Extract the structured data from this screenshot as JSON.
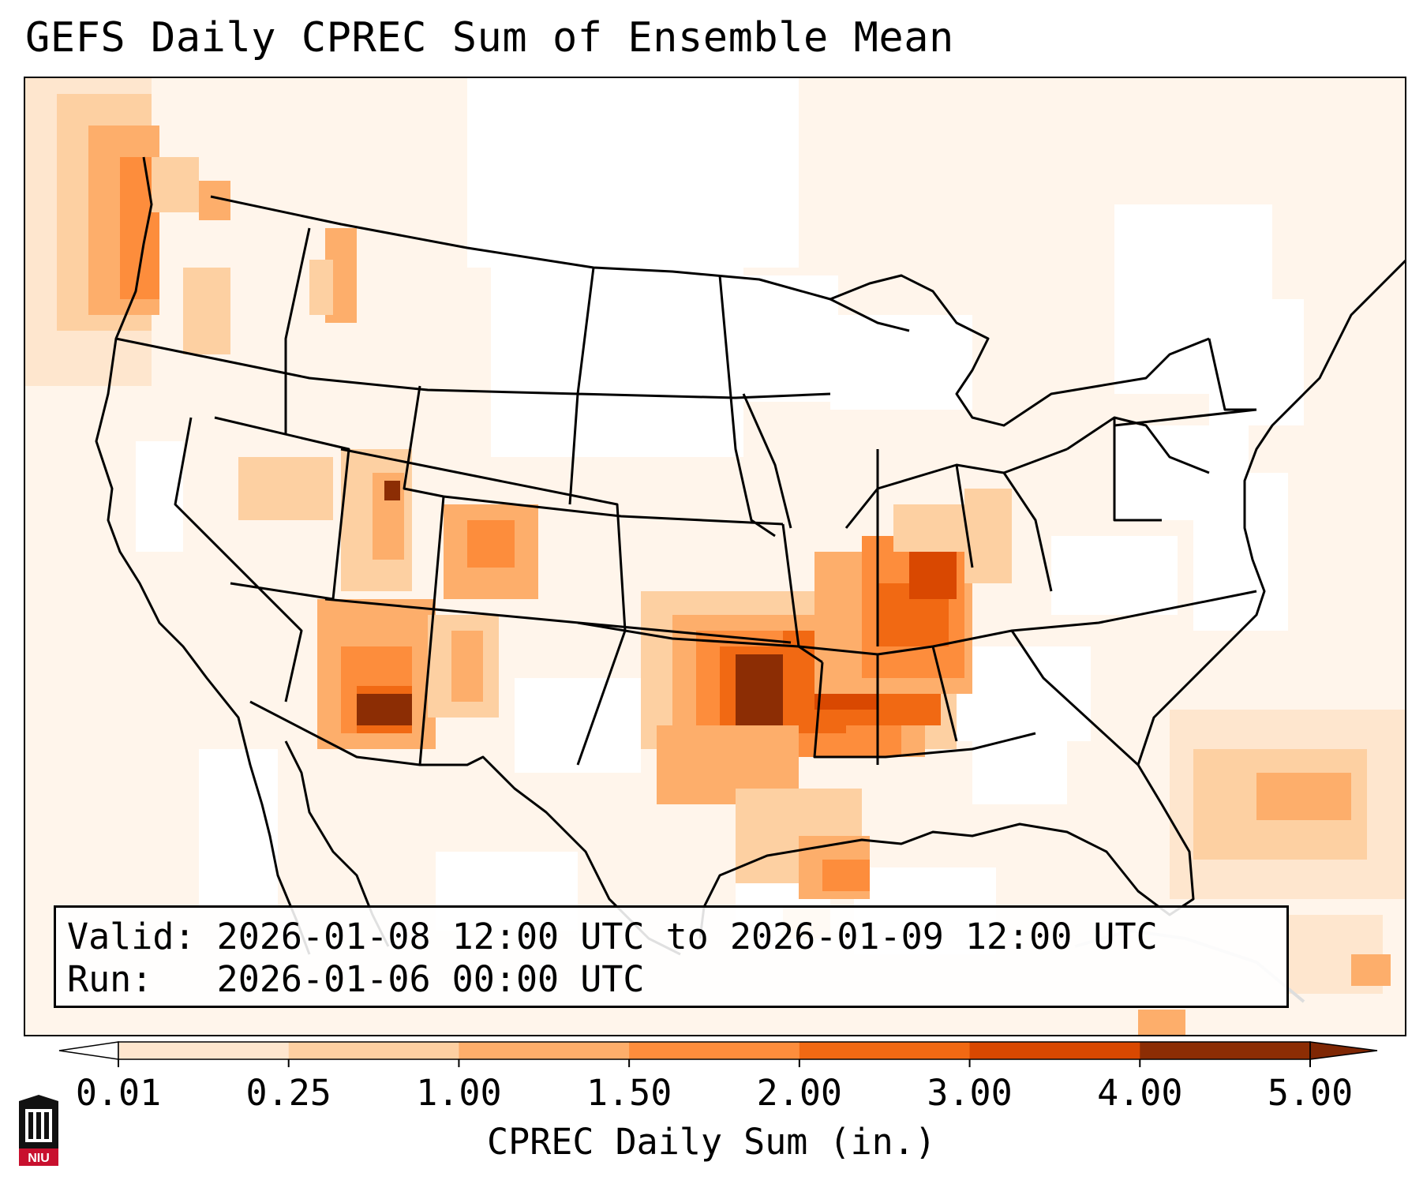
{
  "title": "GEFS Daily CPREC Sum of Ensemble Mean",
  "info": {
    "valid": "Valid: 2026-01-08 12:00 UTC to 2026-01-09 12:00 UTC",
    "run": "Run:   2026-01-06 00:00 UTC"
  },
  "colorbar": {
    "label": "CPREC Daily Sum (in.)",
    "ticks": [
      "0.01",
      "0.25",
      "1.00",
      "1.50",
      "2.00",
      "3.00",
      "4.00",
      "5.00"
    ],
    "colors": [
      "#fff5eb",
      "#fee6ce",
      "#fdd0a2",
      "#fdae6b",
      "#fd8d3c",
      "#f16913",
      "#d94801",
      "#8c2d04"
    ],
    "under_color": "#ffffff",
    "over_color": "#7f2704"
  },
  "logo": {
    "text": "NIU",
    "color": "#c8102e"
  },
  "map": {
    "projection": "Lambert conformal, CONUS",
    "features": [
      "coastlines",
      "country borders",
      "state borders"
    ],
    "field": "GEFS ensemble mean daily convective precipitation"
  }
}
